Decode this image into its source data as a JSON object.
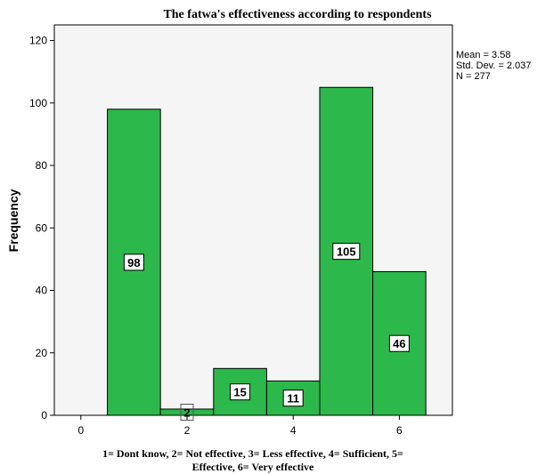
{
  "chart_data": {
    "type": "bar",
    "title": "The fatwa's effectiveness according to respondents",
    "ylabel": "Frequency",
    "xlabel_lines": [
      "1= Dont know, 2= Not effective, 3= Less effective, 4= Sufficient, 5=",
      "Effective, 6= Very effective"
    ],
    "x": [
      1,
      2,
      3,
      4,
      5,
      6
    ],
    "values": [
      98,
      2,
      15,
      11,
      105,
      46
    ],
    "data_labels": [
      "98",
      "2",
      "15",
      "11",
      "105",
      "46"
    ],
    "xlim": [
      -0.5,
      7
    ],
    "ylim": [
      0,
      125
    ],
    "xticks": [
      0,
      2,
      4,
      6
    ],
    "xtick_labels": [
      "0",
      "2",
      "4",
      "6"
    ],
    "yticks": [
      0,
      20,
      40,
      60,
      80,
      100,
      120
    ],
    "ytick_labels": [
      "0",
      "20",
      "40",
      "60",
      "80",
      "100",
      "120"
    ],
    "stats": [
      "Mean = 3.58",
      "Std. Dev. = 2.037",
      "N = 277"
    ],
    "colors": {
      "bar_fill": "#2DB84B",
      "bar_stroke": "#000000",
      "plot_bg": "#F5F5F5"
    }
  }
}
